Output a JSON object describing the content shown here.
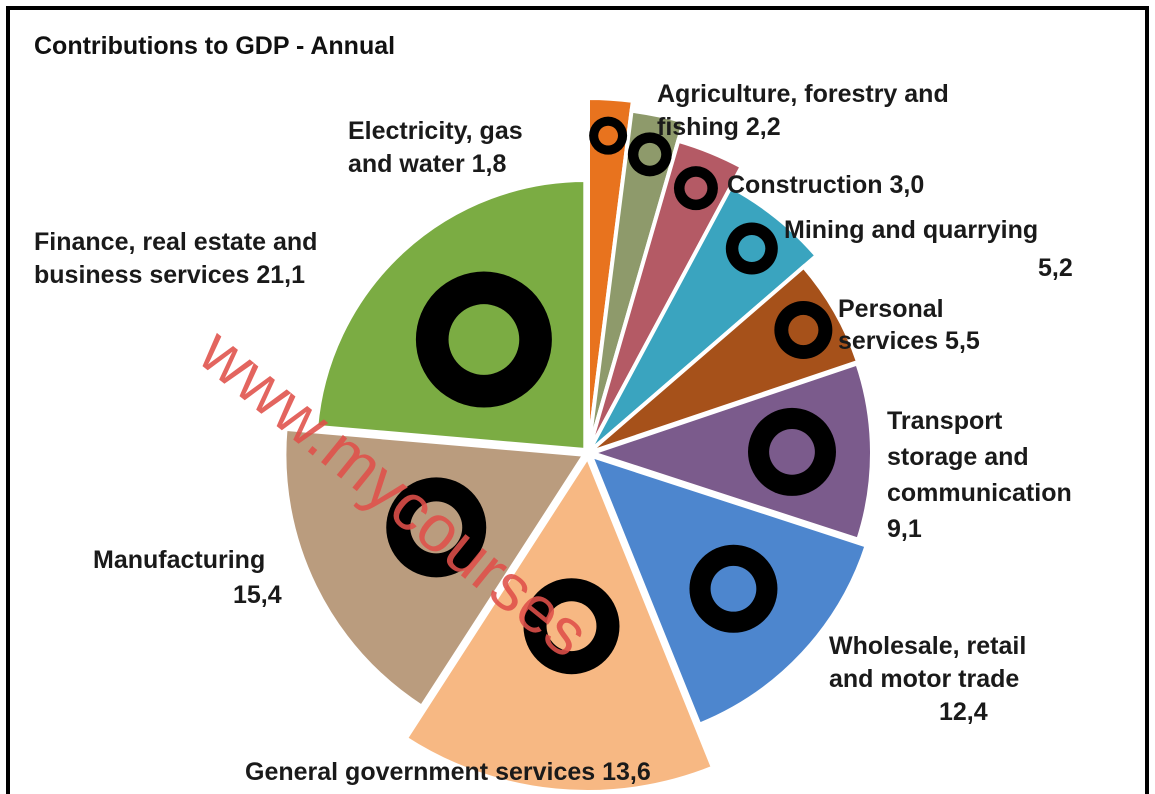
{
  "chart_data": {
    "type": "pie",
    "title": "Contributions to GDP - Annual",
    "slices": [
      {
        "label_lines": [
          "Finance, real estate and",
          "business services 21,1"
        ],
        "value": 21.1,
        "color": "#7bac43",
        "icon": "money-bag-icon"
      },
      {
        "label_lines": [
          "Electricity, gas",
          "and water 1,8"
        ],
        "value": 1.8,
        "color": "#e8731e",
        "icon": "power-pylon-icon"
      },
      {
        "label_lines": [
          "Agriculture, forestry and",
          "fishing 2,2"
        ],
        "value": 2.2,
        "color": "#8e9a6b",
        "icon": "tractor-icon"
      },
      {
        "label_lines": [
          "Construction 3,0"
        ],
        "value": 3.0,
        "color": "#b45a65",
        "icon": "worker-icon"
      },
      {
        "label_lines": [
          "Mining and quarrying",
          "5,2"
        ],
        "value": 5.2,
        "color": "#3aa4bf",
        "icon": "mine-cart-icon"
      },
      {
        "label_lines": [
          "Personal",
          "services 5,5"
        ],
        "value": 5.5,
        "color": "#a6511a",
        "icon": "hand-icon"
      },
      {
        "label_lines": [
          "Transport",
          "storage and",
          "communication",
          "9,1"
        ],
        "value": 9.1,
        "color": "#7b5b8c",
        "icon": "bus-icon"
      },
      {
        "label_lines": [
          "Wholesale, retail",
          "and motor trade",
          "12,4"
        ],
        "value": 12.4,
        "color": "#4d86ce",
        "icon": "shopping-bag-icon"
      },
      {
        "label_lines": [
          "General government services 13,6"
        ],
        "value": 13.6,
        "color": "#f7b883",
        "icon": "hand-icon"
      },
      {
        "label_lines": [
          "Manufacturing",
          "15,4"
        ],
        "value": 15.4,
        "color": "#ba9c7e",
        "icon": "factory-icon"
      }
    ]
  },
  "watermark": "www.mycourses"
}
